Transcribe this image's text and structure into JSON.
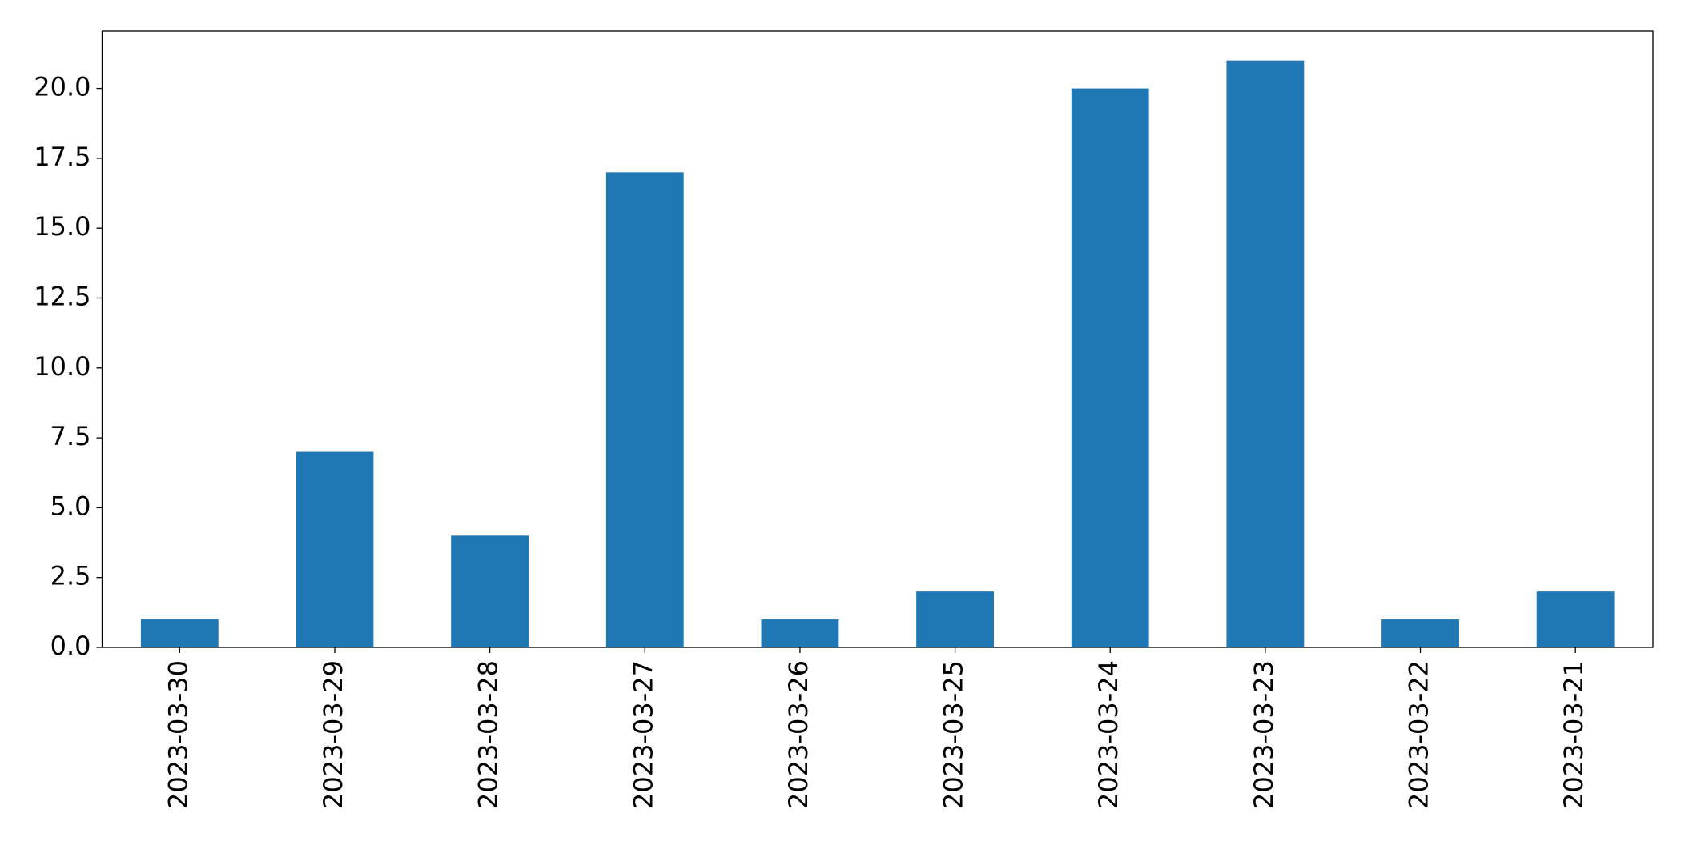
{
  "chart_data": {
    "type": "bar",
    "categories": [
      "2023-03-30",
      "2023-03-29",
      "2023-03-28",
      "2023-03-27",
      "2023-03-26",
      "2023-03-25",
      "2023-03-24",
      "2023-03-23",
      "2023-03-22",
      "2023-03-21"
    ],
    "values": [
      1,
      7,
      4,
      17,
      1,
      2,
      20,
      21,
      1,
      2
    ],
    "color": "#1f77b4",
    "ylim": [
      0,
      22.05
    ],
    "yticks": [
      {
        "value": 0,
        "label": "0.0"
      },
      2.5,
      {
        "value": 5,
        "label": "5.0"
      },
      7.5,
      {
        "value": 10,
        "label": "10.0"
      },
      12.5,
      {
        "value": 15,
        "label": "15.0"
      },
      17.5,
      {
        "value": 20,
        "label": "20.0"
      }
    ]
  }
}
